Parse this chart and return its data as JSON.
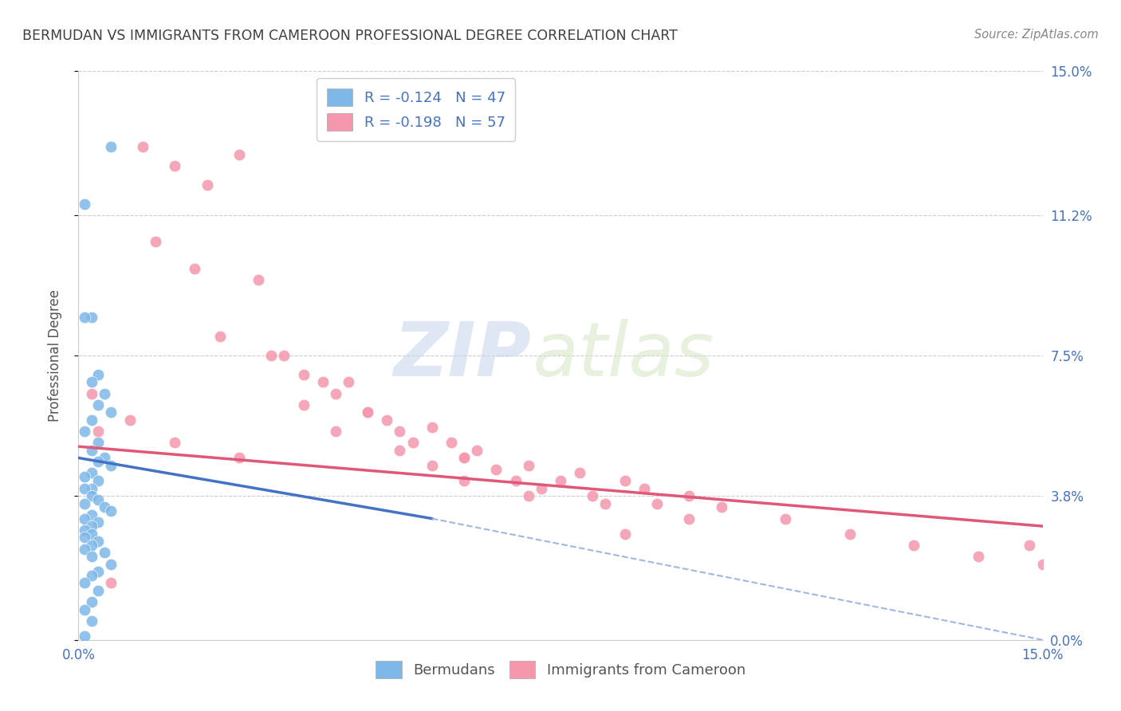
{
  "title": "BERMUDAN VS IMMIGRANTS FROM CAMEROON PROFESSIONAL DEGREE CORRELATION CHART",
  "source": "Source: ZipAtlas.com",
  "ylabel": "Professional Degree",
  "xlim": [
    0.0,
    0.15
  ],
  "ylim": [
    0.0,
    0.15
  ],
  "ytick_labels": [
    "0.0%",
    "3.8%",
    "7.5%",
    "11.2%",
    "15.0%"
  ],
  "ytick_values": [
    0.0,
    0.038,
    0.075,
    0.112,
    0.15
  ],
  "xtick_values": [
    0.0,
    0.03,
    0.06,
    0.09,
    0.12,
    0.15
  ],
  "xtick_labels": [
    "0.0%",
    "",
    "",
    "",
    "",
    "15.0%"
  ],
  "watermark_zip": "ZIP",
  "watermark_atlas": "atlas",
  "legend_entries": [
    {
      "label": "R = -0.124   N = 47",
      "color": "#a8c8f0"
    },
    {
      "label": "R = -0.198   N = 57",
      "color": "#f8b0c0"
    }
  ],
  "bermudan_x": [
    0.005,
    0.001,
    0.002,
    0.001,
    0.003,
    0.002,
    0.004,
    0.003,
    0.005,
    0.002,
    0.001,
    0.003,
    0.002,
    0.004,
    0.003,
    0.005,
    0.002,
    0.001,
    0.003,
    0.002,
    0.001,
    0.002,
    0.003,
    0.001,
    0.004,
    0.005,
    0.002,
    0.001,
    0.003,
    0.002,
    0.001,
    0.002,
    0.001,
    0.003,
    0.002,
    0.001,
    0.004,
    0.002,
    0.005,
    0.003,
    0.002,
    0.001,
    0.003,
    0.002,
    0.001,
    0.002,
    0.001
  ],
  "bermudan_y": [
    0.13,
    0.115,
    0.085,
    0.085,
    0.07,
    0.068,
    0.065,
    0.062,
    0.06,
    0.058,
    0.055,
    0.052,
    0.05,
    0.048,
    0.047,
    0.046,
    0.044,
    0.043,
    0.042,
    0.04,
    0.04,
    0.038,
    0.037,
    0.036,
    0.035,
    0.034,
    0.033,
    0.032,
    0.031,
    0.03,
    0.029,
    0.028,
    0.027,
    0.026,
    0.025,
    0.024,
    0.023,
    0.022,
    0.02,
    0.018,
    0.017,
    0.015,
    0.013,
    0.01,
    0.008,
    0.005,
    0.001
  ],
  "cameroon_x": [
    0.01,
    0.015,
    0.02,
    0.025,
    0.012,
    0.018,
    0.022,
    0.03,
    0.028,
    0.035,
    0.032,
    0.038,
    0.04,
    0.035,
    0.042,
    0.045,
    0.04,
    0.048,
    0.05,
    0.045,
    0.052,
    0.055,
    0.05,
    0.058,
    0.06,
    0.055,
    0.062,
    0.065,
    0.06,
    0.068,
    0.07,
    0.075,
    0.072,
    0.078,
    0.08,
    0.085,
    0.082,
    0.088,
    0.09,
    0.095,
    0.1,
    0.11,
    0.12,
    0.13,
    0.14,
    0.148,
    0.15,
    0.003,
    0.008,
    0.015,
    0.025,
    0.06,
    0.07,
    0.085,
    0.095,
    0.002,
    0.005
  ],
  "cameroon_y": [
    0.13,
    0.125,
    0.12,
    0.128,
    0.105,
    0.098,
    0.08,
    0.075,
    0.095,
    0.07,
    0.075,
    0.068,
    0.065,
    0.062,
    0.068,
    0.06,
    0.055,
    0.058,
    0.055,
    0.06,
    0.052,
    0.056,
    0.05,
    0.052,
    0.048,
    0.046,
    0.05,
    0.045,
    0.048,
    0.042,
    0.046,
    0.042,
    0.04,
    0.044,
    0.038,
    0.042,
    0.036,
    0.04,
    0.036,
    0.038,
    0.035,
    0.032,
    0.028,
    0.025,
    0.022,
    0.025,
    0.02,
    0.055,
    0.058,
    0.052,
    0.048,
    0.042,
    0.038,
    0.028,
    0.032,
    0.065,
    0.015
  ],
  "blue_line": {
    "x0": 0.0,
    "y0": 0.048,
    "x1": 0.055,
    "y1": 0.032
  },
  "pink_line": {
    "x0": 0.0,
    "y0": 0.051,
    "x1": 0.15,
    "y1": 0.03
  },
  "dashed_line": {
    "x0": 0.055,
    "y0": 0.032,
    "x1": 0.15,
    "y1": 0.0
  },
  "dot_color_blue": "#7eb8e8",
  "dot_color_pink": "#f497ad",
  "blue_line_color": "#4472c4",
  "pink_line_color": "#e05878",
  "dashed_line_color": "#a0b8e0",
  "background_color": "#ffffff",
  "grid_color": "#cccccc",
  "title_color": "#404040",
  "tick_label_color": "#4472c4",
  "ylabel_color": "#555555",
  "source_color": "#888888",
  "watermark_color_zip": "#c8d8ec",
  "watermark_color_atlas": "#d8e8c8"
}
